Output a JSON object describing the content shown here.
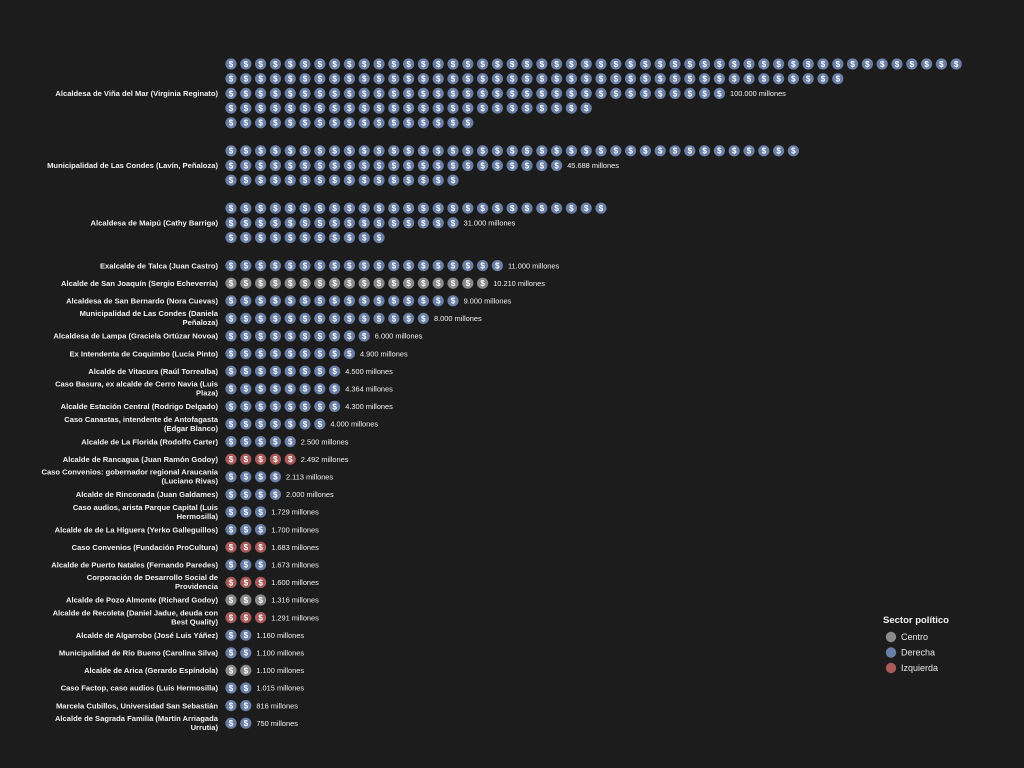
{
  "chart_data": {
    "type": "pictogram",
    "unit_note": "",
    "glyph": "$",
    "colors": {
      "Centro": "#8a8a8a",
      "Derecha": "#6a7fa8",
      "Izquierda": "#a85a5a"
    },
    "legend": {
      "title": "Sector político",
      "placement": "right",
      "entries": [
        "Centro",
        "Derecha",
        "Izquierda"
      ]
    },
    "rows": [
      {
        "label": "Alcaldesa de Viña del Mar (Virginia Reginato)",
        "label_lines": [
          "Alcaldesa de Viña del Mar (Virginia Reginato)"
        ],
        "sector": "Derecha",
        "value": 100000,
        "value_label": "100.000 millones",
        "icons": [
          50,
          42,
          34,
          25,
          17
        ]
      },
      {
        "label": "Municipalidad de Las Condes (Lavín, Peñaloza)",
        "label_lines": [
          "Municipalidad de Las Condes (Lavín, Peñaloza)"
        ],
        "sector": "Derecha",
        "value": 45688,
        "value_label": "45.688 millones",
        "icons": [
          39,
          23,
          16
        ]
      },
      {
        "label": "Alcaldesa de Maipú (Cathy Barriga)",
        "label_lines": [
          "Alcaldesa de Maipú (Cathy Barriga)"
        ],
        "sector": "Derecha",
        "value": 31000,
        "value_label": "31.000 millones",
        "icons": [
          26,
          16,
          11
        ]
      },
      {
        "label": "Exalcalde de Talca (Juan Castro)",
        "label_lines": [
          "Exalcalde de Talca (Juan Castro)"
        ],
        "sector": "Derecha",
        "value": 11000,
        "value_label": "11.000 millones",
        "icons": [
          19
        ]
      },
      {
        "label": "Alcalde de San Joaquín (Sergio Echeverría)",
        "label_lines": [
          "Alcalde de San Joaquín (Sergio Echeverría)"
        ],
        "sector": "Centro",
        "value": 10210,
        "value_label": "10.210 millones",
        "icons": [
          18
        ]
      },
      {
        "label": "Alcaldesa de San Bernardo (Nora Cuevas)",
        "label_lines": [
          "Alcaldesa de San Bernardo (Nora Cuevas)"
        ],
        "sector": "Derecha",
        "value": 9000,
        "value_label": "9.000 millones",
        "icons": [
          16
        ]
      },
      {
        "label": "Municipalidad de Las Condes (Daniela Peñaloza)",
        "label_lines": [
          "Municipalidad de Las Condes (Daniela",
          "Peñaloza)"
        ],
        "sector": "Derecha",
        "value": 8000,
        "value_label": "8.000 millones",
        "icons": [
          14
        ]
      },
      {
        "label": "Alcaldesa de Lampa (Graciela Ortúzar Novoa)",
        "label_lines": [
          "Alcaldesa de Lampa (Graciela Ortúzar Novoa)"
        ],
        "sector": "Derecha",
        "value": 6000,
        "value_label": "6.000 millones",
        "icons": [
          10
        ]
      },
      {
        "label": "Ex Intendenta de Coquimbo (Lucía Pinto)",
        "label_lines": [
          "Ex Intendenta de Coquimbo (Lucía Pinto)"
        ],
        "sector": "Derecha",
        "value": 4900,
        "value_label": "4.900 millones",
        "icons": [
          9
        ]
      },
      {
        "label": "Alcalde de Vitacura (Raúl Torrealba)",
        "label_lines": [
          "Alcalde de Vitacura (Raúl Torrealba)"
        ],
        "sector": "Derecha",
        "value": 4500,
        "value_label": "4.500 millones",
        "icons": [
          8
        ]
      },
      {
        "label": "Caso Basura, ex alcalde de Cerro Navia (Luis Plaza)",
        "label_lines": [
          "Caso Basura, ex alcalde de Cerro Navia (Luis",
          "Plaza)"
        ],
        "sector": "Derecha",
        "value": 4364,
        "value_label": "4.364 millones",
        "icons": [
          8
        ]
      },
      {
        "label": "Alcalde Estación Central (Rodrigo Delgado)",
        "label_lines": [
          "Alcalde Estación Central (Rodrigo Delgado)"
        ],
        "sector": "Derecha",
        "value": 4300,
        "value_label": "4.300 millones",
        "icons": [
          8
        ]
      },
      {
        "label": "Caso Canastas, intendente de Antofagasta (Edgar Blanco)",
        "label_lines": [
          "Caso Canastas, intendente de Antofagasta",
          "(Edgar Blanco)"
        ],
        "sector": "Derecha",
        "value": 4000,
        "value_label": "4.000 millones",
        "icons": [
          7
        ]
      },
      {
        "label": "Alcalde de La Florida (Rodolfo Carter)",
        "label_lines": [
          "Alcalde de La Florida (Rodolfo Carter)"
        ],
        "sector": "Derecha",
        "value": 2500,
        "value_label": "2.500 millones",
        "icons": [
          5
        ]
      },
      {
        "label": "Alcalde de Rancagua (Juan Ramón Godoy)",
        "label_lines": [
          "Alcalde de Rancagua (Juan Ramón Godoy)"
        ],
        "sector": "Izquierda",
        "value": 2492,
        "value_label": "2.492 millones",
        "icons": [
          5
        ]
      },
      {
        "label": "Caso Convenios: gobernador regional Araucanía (Luciano Rivas)",
        "label_lines": [
          "Caso Convenios: gobernador regional Araucanía",
          "(Luciano Rivas)"
        ],
        "sector": "Derecha",
        "value": 2113,
        "value_label": "2.113 millones",
        "icons": [
          4
        ]
      },
      {
        "label": "Alcalde de Rinconada (Juan Galdames)",
        "label_lines": [
          "Alcalde de Rinconada (Juan Galdames)"
        ],
        "sector": "Derecha",
        "value": 2000,
        "value_label": "2.000 millones",
        "icons": [
          4
        ]
      },
      {
        "label": "Caso audios, arista Parque Capital (Luis Hermosilla)",
        "label_lines": [
          "Caso audios, arista Parque Capital (Luis",
          "Hermosilla)"
        ],
        "sector": "Derecha",
        "value": 1729,
        "value_label": "1.729 millones",
        "icons": [
          3
        ]
      },
      {
        "label": "Alcalde de de La Higuera (Yerko Galleguillos)",
        "label_lines": [
          "Alcalde de de La Higuera (Yerko Galleguillos)"
        ],
        "sector": "Derecha",
        "value": 1700,
        "value_label": "1.700 millones",
        "icons": [
          3
        ]
      },
      {
        "label": "Caso Convenios (Fundación ProCultura)",
        "label_lines": [
          "Caso Convenios (Fundación ProCultura)"
        ],
        "sector": "Izquierda",
        "value": 1683,
        "value_label": "1.683 millones",
        "icons": [
          3
        ]
      },
      {
        "label": "Alcalde de Puerto Natales (Fernando Paredes)",
        "label_lines": [
          "Alcalde de Puerto Natales (Fernando Paredes)"
        ],
        "sector": "Derecha",
        "value": 1673,
        "value_label": "1.673 millones",
        "icons": [
          3
        ]
      },
      {
        "label": "Corporación de Desarrollo Social de Providencia",
        "label_lines": [
          "Corporación de Desarrollo Social de",
          "Providencia"
        ],
        "sector": "Izquierda",
        "value": 1600,
        "value_label": "1.600 millones",
        "icons": [
          3
        ]
      },
      {
        "label": "Alcalde de Pozo Almonte (Richard Godoy)",
        "label_lines": [
          "Alcalde de Pozo Almonte (Richard Godoy)"
        ],
        "sector": "Centro",
        "value": 1316,
        "value_label": "1.316 millones",
        "icons": [
          3
        ]
      },
      {
        "label": "Alcalde de Recoleta (Daniel Jadue, deuda con Best Quality)",
        "label_lines": [
          "Alcalde de Recoleta (Daniel Jadue, deuda con",
          "Best Quality)"
        ],
        "sector": "Izquierda",
        "value": 1291,
        "value_label": "1.291 millones",
        "icons": [
          3
        ]
      },
      {
        "label": "Alcalde de Algarrobo (José Luis Yáñez)",
        "label_lines": [
          "Alcalde de Algarrobo (José Luis Yáñez)"
        ],
        "sector": "Derecha",
        "value": 1160,
        "value_label": "1.160 millones",
        "icons": [
          2
        ]
      },
      {
        "label": "Municipalidad de Río Bueno (Carolina Silva)",
        "label_lines": [
          "Municipalidad de Río Bueno (Carolina Silva)"
        ],
        "sector": "Derecha",
        "value": 1100,
        "value_label": "1.100 millones",
        "icons": [
          2
        ]
      },
      {
        "label": "Alcalde de Arica (Gerardo Espíndola)",
        "label_lines": [
          "Alcalde de Arica (Gerardo Espíndola)"
        ],
        "sector": "Centro",
        "value": 1100,
        "value_label": "1.100 millones",
        "icons": [
          2
        ]
      },
      {
        "label": "Caso Factop, caso audios (Luis Hermosilla)",
        "label_lines": [
          "Caso Factop, caso audios (Luis Hermosilla)"
        ],
        "sector": "Derecha",
        "value": 1015,
        "value_label": "1.015 millones",
        "icons": [
          2
        ]
      },
      {
        "label": "Marcela Cubillos, Universidad San Sebastián",
        "label_lines": [
          "Marcela Cubillos, Universidad San Sebastián"
        ],
        "sector": "Derecha",
        "value": 816,
        "value_label": "816 millones",
        "icons": [
          2
        ]
      },
      {
        "label": "Alcalde de Sagrada Familia (Martín Arriagada Urrutia)",
        "label_lines": [
          "Alcalde de Sagrada Familia (Martín Arriagada",
          "Urrutia)"
        ],
        "sector": "Derecha",
        "value": 750,
        "value_label": "750 millones",
        "icons": [
          2
        ]
      }
    ]
  }
}
